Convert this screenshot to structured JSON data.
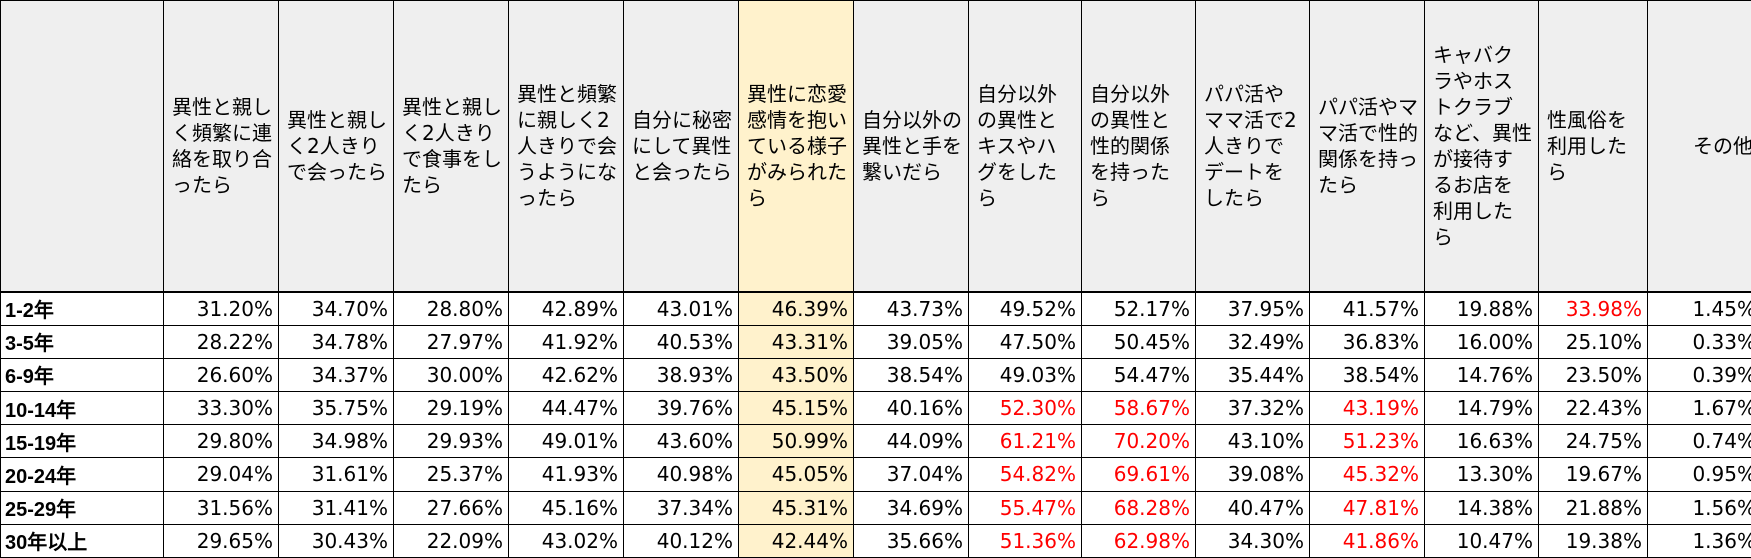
{
  "table": {
    "columns": [
      "",
      "異性と親しく頻繁に連絡を取り合ったら",
      "異性と親しく2人きりで会ったら",
      "異性と親しく2人きりで食事をしたら",
      "異性と頻繁に親しく2人きりで会うようになったら",
      "自分に秘密にして異性と会ったら",
      "異性に恋愛感情を抱いている様子がみられたら",
      "自分以外の異性と手を繋いだら",
      "自分以外の異性とキスやハグをしたら",
      "自分以外の異性と性的関係を持ったら",
      "パパ活やママ活で2人きりでデートをしたら",
      "パパ活やママ活で性的関係を持ったら",
      "キャバクラやホストクラブなど、異性が接待するお店を利用したら",
      "性風俗を利用したら",
      "その他"
    ],
    "highlight_column_index": 6,
    "highlight_color": "#fff2cc",
    "header_background": "#efefef",
    "alert_color": "#ff0000",
    "rows": [
      {
        "label": "1-2年",
        "values": [
          "31.20%",
          "34.70%",
          "28.80%",
          "42.89%",
          "43.01%",
          "46.39%",
          "43.73%",
          "49.52%",
          "52.17%",
          "37.95%",
          "41.57%",
          "19.88%",
          "33.98%",
          "1.45%"
        ],
        "red": [
          12
        ]
      },
      {
        "label": "3-5年",
        "values": [
          "28.22%",
          "34.78%",
          "27.97%",
          "41.92%",
          "40.53%",
          "43.31%",
          "39.05%",
          "47.50%",
          "50.45%",
          "32.49%",
          "36.83%",
          "16.00%",
          "25.10%",
          "0.33%"
        ],
        "red": []
      },
      {
        "label": "6-9年",
        "values": [
          "26.60%",
          "34.37%",
          "30.00%",
          "42.62%",
          "38.93%",
          "43.50%",
          "38.54%",
          "49.03%",
          "54.47%",
          "35.44%",
          "38.54%",
          "14.76%",
          "23.50%",
          "0.39%"
        ],
        "red": []
      },
      {
        "label": "10-14年",
        "values": [
          "33.30%",
          "35.75%",
          "29.19%",
          "44.47%",
          "39.76%",
          "45.15%",
          "40.16%",
          "52.30%",
          "58.67%",
          "37.32%",
          "43.19%",
          "14.79%",
          "22.43%",
          "1.67%"
        ],
        "red": [
          7,
          8,
          10
        ]
      },
      {
        "label": "15-19年",
        "values": [
          "29.80%",
          "34.98%",
          "29.93%",
          "49.01%",
          "43.60%",
          "50.99%",
          "44.09%",
          "61.21%",
          "70.20%",
          "43.10%",
          "51.23%",
          "16.63%",
          "24.75%",
          "0.74%"
        ],
        "red": [
          7,
          8,
          10
        ]
      },
      {
        "label": "20-24年",
        "values": [
          "29.04%",
          "31.61%",
          "25.37%",
          "41.93%",
          "40.98%",
          "45.05%",
          "37.04%",
          "54.82%",
          "69.61%",
          "39.08%",
          "45.32%",
          "13.30%",
          "19.67%",
          "0.95%"
        ],
        "red": [
          7,
          8,
          10
        ]
      },
      {
        "label": "25-29年",
        "values": [
          "31.56%",
          "31.41%",
          "27.66%",
          "45.16%",
          "37.34%",
          "45.31%",
          "34.69%",
          "55.47%",
          "68.28%",
          "40.47%",
          "47.81%",
          "14.38%",
          "21.88%",
          "1.56%"
        ],
        "red": [
          7,
          8,
          10
        ]
      },
      {
        "label": "30年以上",
        "values": [
          "29.65%",
          "30.43%",
          "22.09%",
          "43.02%",
          "40.12%",
          "42.44%",
          "35.66%",
          "51.36%",
          "62.98%",
          "34.30%",
          "41.86%",
          "10.47%",
          "19.38%",
          "1.36%"
        ],
        "red": [
          7,
          8,
          10
        ]
      }
    ]
  }
}
